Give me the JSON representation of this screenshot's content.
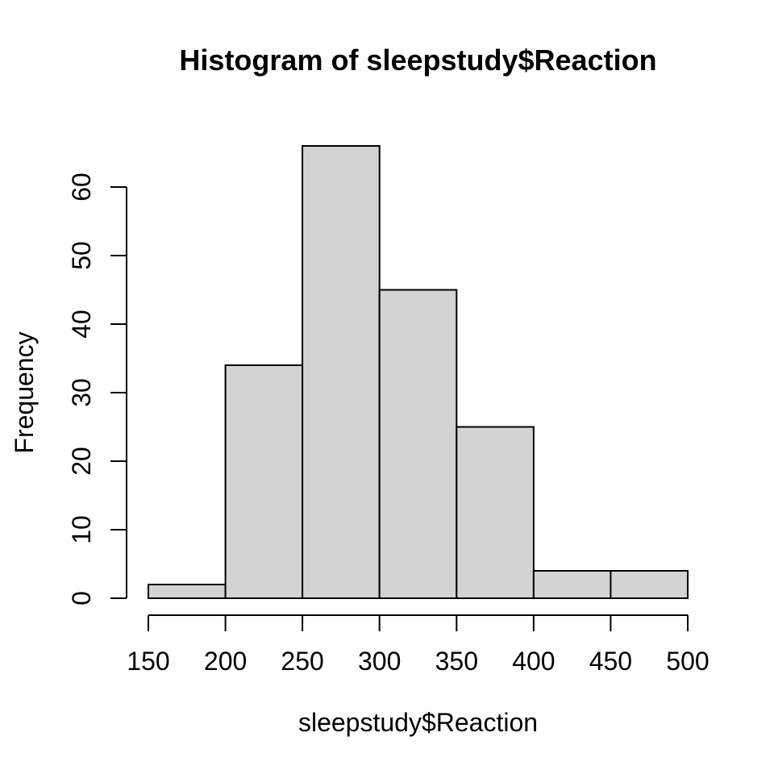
{
  "window": {
    "background": "#ffffff"
  },
  "chart_data": {
    "type": "bar",
    "subtype": "histogram",
    "title": "Histogram of sleepstudy$Reaction",
    "xlabel": "sleepstudy$Reaction",
    "ylabel": "Frequency",
    "bins": {
      "breaks": [
        150,
        200,
        250,
        300,
        350,
        400,
        450,
        500
      ],
      "counts": [
        2,
        34,
        66,
        45,
        25,
        4,
        4
      ]
    },
    "x_ticks": [
      150,
      200,
      250,
      300,
      350,
      400,
      450,
      500
    ],
    "x_tick_labels": [
      "150",
      "200",
      "250",
      "300",
      "350",
      "400",
      "450",
      "500"
    ],
    "y_ticks": [
      0,
      10,
      20,
      30,
      40,
      50,
      60
    ],
    "y_tick_labels": [
      "0",
      "10",
      "20",
      "30",
      "40",
      "50",
      "60"
    ],
    "xlim": [
      150,
      500
    ],
    "ylim": [
      0,
      66
    ],
    "grid": false,
    "legend": null,
    "colors": {
      "bar_fill": "#d3d3d3",
      "bar_stroke": "#000000",
      "axis": "#000000",
      "text": "#000000",
      "background": "#ffffff"
    }
  }
}
